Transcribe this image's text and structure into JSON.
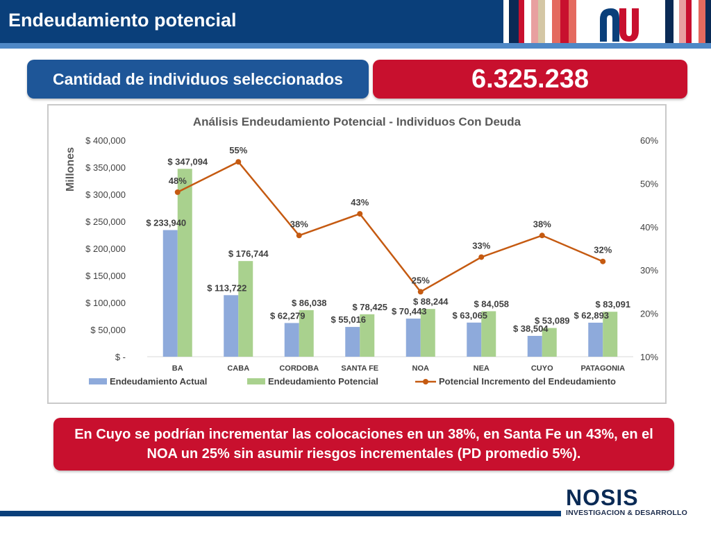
{
  "header": {
    "title": "Endeudamiento potencial"
  },
  "kpi": {
    "label": "Cantidad de individuos seleccionados",
    "value": "6.325.238"
  },
  "note": {
    "text": "En Cuyo se podrían incrementar las colocaciones en un 38%, en Santa Fe un 43%, en el NOA un 25% sin asumir riesgos incrementales (PD promedio 5%)."
  },
  "footer": {
    "brand": "NOSIS",
    "subtitle": "INVESTIGACION & DESARROLLO"
  },
  "colors": {
    "header_blue": "#0a3f7a",
    "accent_red": "#c8102e",
    "series_actual": "#8eaadb",
    "series_potential": "#a9d18e",
    "series_line": "#c55a11"
  },
  "chart_data": {
    "type": "bar",
    "title": "Análisis Endeudamiento Potencial - Individuos Con Deuda",
    "ylabel": "Millones",
    "categories": [
      "BA",
      "CABA",
      "CORDOBA",
      "SANTA FE",
      "NOA",
      "NEA",
      "CUYO",
      "PATAGONIA"
    ],
    "ylim": [
      0,
      400000
    ],
    "y_ticks": [
      "$ -",
      "$ 50,000",
      "$ 100,000",
      "$ 150,000",
      "$ 200,000",
      "$ 250,000",
      "$ 300,000",
      "$ 350,000",
      "$ 400,000"
    ],
    "y2lim": [
      10,
      60
    ],
    "y2_ticks": [
      "10%",
      "20%",
      "30%",
      "40%",
      "50%",
      "60%"
    ],
    "series": [
      {
        "name": "Endeudamiento Actual",
        "type": "bar",
        "values": [
          233940,
          113722,
          62279,
          55016,
          70443,
          63065,
          38504,
          62893
        ],
        "labels": [
          "$ 233,940",
          "$ 113,722",
          "$ 62,279",
          "$ 55,016",
          "$ 70,443",
          "$ 63,065",
          "$ 38,504",
          "$ 62,893"
        ]
      },
      {
        "name": "Endeudamiento Potencial",
        "type": "bar",
        "values": [
          347094,
          176744,
          86038,
          78425,
          88244,
          84058,
          53089,
          83091
        ],
        "labels": [
          "$ 347,094",
          "$ 176,744",
          "$ 86,038",
          "$ 78,425",
          "$ 88,244",
          "$ 84,058",
          "$ 53,089",
          "$ 83,091"
        ]
      },
      {
        "name": "Potencial Incremento del Endeudamiento",
        "type": "line",
        "axis": "right",
        "values": [
          48,
          55,
          38,
          43,
          25,
          33,
          38,
          32
        ],
        "labels": [
          "48%",
          "55%",
          "38%",
          "43%",
          "25%",
          "33%",
          "38%",
          "32%"
        ]
      }
    ],
    "legend": "bottom",
    "grid": false
  }
}
